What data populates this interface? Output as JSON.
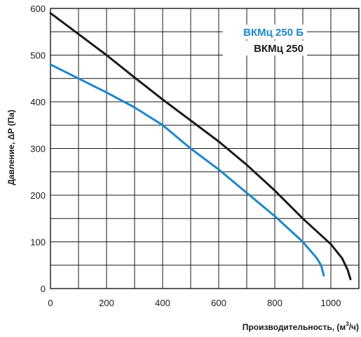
{
  "chart_data": {
    "type": "line",
    "xlabel": "Производительность, (м³/ч)",
    "ylabel": "Давление, ΔP (Па)",
    "xlim": [
      0,
      1100
    ],
    "ylim": [
      0,
      600
    ],
    "x_ticks": [
      "0",
      "200",
      "400",
      "600",
      "800",
      "1000"
    ],
    "y_ticks": [
      "0",
      "100",
      "200",
      "300",
      "400",
      "500",
      "600"
    ],
    "grid": true,
    "legend_position": "top-right",
    "series": [
      {
        "name": "ВКМц 250 Б",
        "color": "#1f86c8",
        "x": [
          0,
          100,
          200,
          300,
          400,
          500,
          600,
          700,
          800,
          900,
          950,
          965,
          975
        ],
        "y": [
          480,
          450,
          420,
          388,
          350,
          300,
          255,
          205,
          155,
          100,
          65,
          50,
          28
        ]
      },
      {
        "name": "ВКМц 250",
        "color": "#1a1a1a",
        "x": [
          0,
          100,
          200,
          300,
          400,
          500,
          600,
          700,
          800,
          900,
          1000,
          1040,
          1060,
          1070
        ],
        "y": [
          590,
          545,
          500,
          452,
          405,
          360,
          315,
          265,
          210,
          150,
          95,
          65,
          40,
          20
        ]
      }
    ]
  }
}
